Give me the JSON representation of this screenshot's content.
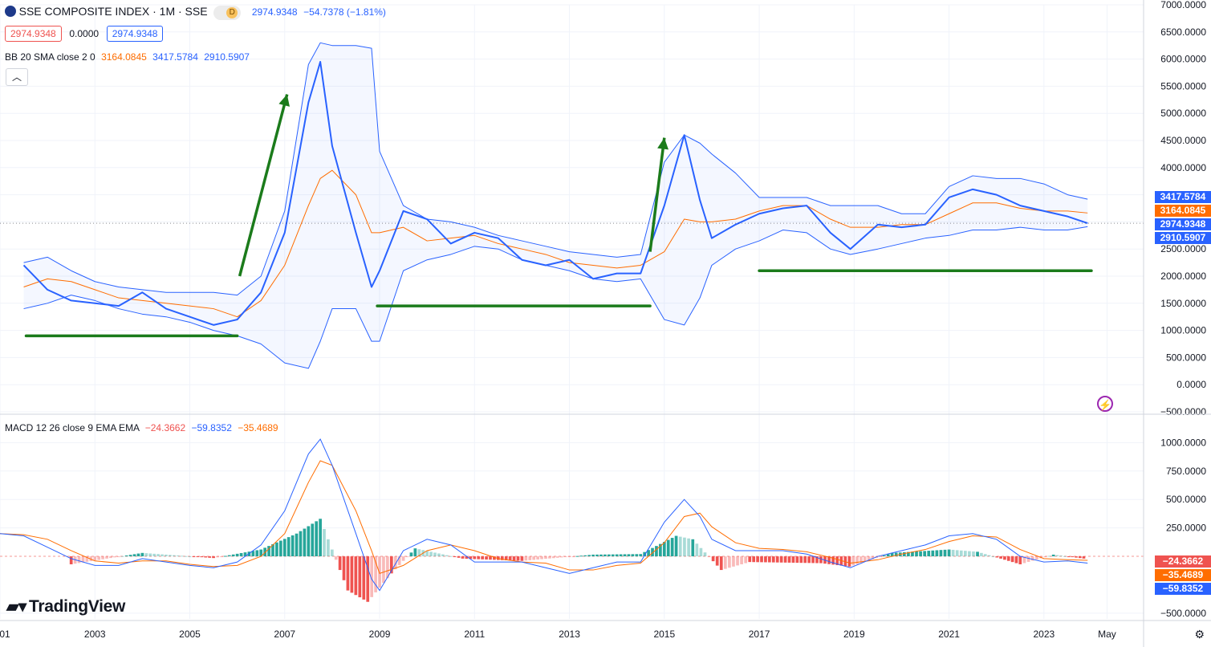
{
  "header": {
    "symbol_title": "SSE COMPOSITE INDEX · 1M · SSE",
    "interval_badge": "D",
    "last_price": "2974.9348",
    "change": "−54.7378 (−1.81%)",
    "bid": "2974.9348",
    "spread": "0.0000",
    "ask": "2974.9348"
  },
  "indicators": {
    "bb": {
      "label": "BB 20 SMA close 2 0",
      "basis": "3164.0845",
      "upper": "3417.5784",
      "lower": "2910.5907"
    },
    "macd": {
      "label": "MACD 12 26 close 9 EMA EMA",
      "hist": "−24.3662",
      "macd": "−59.8352",
      "signal": "−35.4689"
    }
  },
  "price_badges": {
    "upper": "3417.5784",
    "basis": "3164.0845",
    "last": "2974.9348",
    "lower": "2910.5907"
  },
  "macd_badges": {
    "hist": "−24.3662",
    "signal": "−35.4689",
    "macd": "−59.8352"
  },
  "brand": {
    "logo_text": "TradingView"
  },
  "colors": {
    "price": "#2962ff",
    "basis": "#ff6d00",
    "band": "#2962ff",
    "hist_up": "#26a69a",
    "hist_down": "#ef5350",
    "annotation": "#1b7b1b"
  },
  "chart_data": [
    {
      "type": "line",
      "title": "SSE COMPOSITE INDEX",
      "x": [
        2001.5,
        2002,
        2002.5,
        2003,
        2003.5,
        2004,
        2004.5,
        2005,
        2005.5,
        2006,
        2006.5,
        2007,
        2007.5,
        2007.75,
        2008,
        2008.5,
        2008.83,
        2009,
        2009.5,
        2010,
        2010.5,
        2011,
        2011.5,
        2012,
        2012.5,
        2013,
        2013.5,
        2014,
        2014.5,
        2015,
        2015.42,
        2015.75,
        2016,
        2016.5,
        2017,
        2017.5,
        2018,
        2018.5,
        2018.92,
        2019.5,
        2020,
        2020.5,
        2021,
        2021.5,
        2022,
        2022.5,
        2023,
        2023.5,
        2023.92
      ],
      "series": [
        {
          "name": "Price",
          "values": [
            2200,
            1750,
            1550,
            1500,
            1450,
            1700,
            1400,
            1250,
            1100,
            1200,
            1700,
            2800,
            5200,
            5950,
            4400,
            2800,
            1800,
            2100,
            3200,
            3050,
            2600,
            2800,
            2700,
            2300,
            2200,
            2300,
            1950,
            2050,
            2050,
            3300,
            4600,
            3400,
            2700,
            2950,
            3150,
            3250,
            3300,
            2800,
            2500,
            2950,
            2900,
            2950,
            3450,
            3600,
            3500,
            3300,
            3200,
            3100,
            2975
          ]
        },
        {
          "name": "Basis",
          "values": [
            1800,
            1950,
            1900,
            1750,
            1600,
            1550,
            1500,
            1450,
            1400,
            1250,
            1550,
            2200,
            3300,
            3800,
            3950,
            3500,
            2800,
            2800,
            2900,
            2650,
            2700,
            2750,
            2600,
            2500,
            2400,
            2250,
            2200,
            2150,
            2200,
            2450,
            3050,
            3000,
            3000,
            3050,
            3200,
            3300,
            3300,
            3050,
            2900,
            2900,
            2950,
            2950,
            3150,
            3350,
            3350,
            3250,
            3200,
            3200,
            3164
          ]
        },
        {
          "name": "Upper",
          "values": [
            2250,
            2350,
            2100,
            1900,
            1800,
            1750,
            1700,
            1700,
            1700,
            1650,
            2000,
            3200,
            5900,
            6300,
            6250,
            6250,
            6200,
            4300,
            3300,
            3050,
            3000,
            2900,
            2750,
            2650,
            2550,
            2450,
            2400,
            2350,
            2400,
            4100,
            4600,
            4450,
            4250,
            3900,
            3450,
            3450,
            3450,
            3300,
            3300,
            3300,
            3150,
            3150,
            3650,
            3850,
            3800,
            3800,
            3700,
            3500,
            3418
          ]
        },
        {
          "name": "Lower",
          "values": [
            1400,
            1500,
            1650,
            1550,
            1400,
            1300,
            1250,
            1150,
            1000,
            900,
            750,
            400,
            300,
            800,
            1400,
            1400,
            800,
            800,
            2100,
            2300,
            2400,
            2550,
            2500,
            2300,
            2200,
            2100,
            1950,
            1900,
            1950,
            1200,
            1100,
            1600,
            2200,
            2500,
            2650,
            2850,
            2800,
            2500,
            2400,
            2500,
            2600,
            2700,
            2750,
            2850,
            2850,
            2900,
            2850,
            2850,
            2911
          ]
        }
      ],
      "ylim": [
        -500,
        7000
      ],
      "yticks": [
        "7000.0000",
        "6500.0000",
        "6000.0000",
        "5500.0000",
        "5000.0000",
        "4500.0000",
        "4000.0000",
        "3500.0000",
        "3000.0000",
        "2500.0000",
        "2000.0000",
        "1500.0000",
        "1000.0000",
        "500.0000",
        "0.0000",
        "−500.0000"
      ],
      "ytick_values": [
        7000,
        6500,
        6000,
        5500,
        5000,
        4500,
        4000,
        3500,
        3000,
        2500,
        2000,
        1500,
        1000,
        500,
        0,
        -500
      ],
      "xticks": [
        "01",
        "2003",
        "2005",
        "2007",
        "2009",
        "2011",
        "2013",
        "2015",
        "2017",
        "2019",
        "2021",
        "2023",
        "May"
      ],
      "xtick_values": [
        2001,
        2003,
        2005,
        2007,
        2009,
        2011,
        2013,
        2015,
        2017,
        2019,
        2021,
        2023,
        2024.33
      ],
      "xlim": [
        2001,
        2025.1
      ],
      "grid": true
    },
    {
      "type": "line",
      "title": "MACD 12 26 close 9 EMA EMA",
      "x": [
        2001,
        2001.5,
        2002,
        2002.5,
        2003,
        2003.5,
        2004,
        2004.5,
        2005,
        2005.5,
        2006,
        2006.5,
        2007,
        2007.5,
        2007.75,
        2008,
        2008.5,
        2008.83,
        2009,
        2009.5,
        2010,
        2010.5,
        2011,
        2011.5,
        2012,
        2012.5,
        2013,
        2013.5,
        2014,
        2014.5,
        2015,
        2015.42,
        2015.75,
        2016,
        2016.5,
        2017,
        2017.5,
        2018,
        2018.5,
        2018.92,
        2019.5,
        2020,
        2020.5,
        2021,
        2021.5,
        2022,
        2022.5,
        2023,
        2023.5,
        2023.92
      ],
      "series": [
        {
          "name": "MACD",
          "values": [
            200,
            180,
            80,
            -20,
            -80,
            -80,
            -20,
            -50,
            -80,
            -100,
            -50,
            100,
            400,
            900,
            1030,
            800,
            200,
            -200,
            -300,
            50,
            150,
            100,
            -50,
            -50,
            -50,
            -100,
            -150,
            -100,
            -50,
            -50,
            300,
            500,
            350,
            150,
            50,
            50,
            50,
            20,
            -50,
            -100,
            0,
            50,
            100,
            180,
            200,
            150,
            0,
            -50,
            -40,
            -60
          ]
        },
        {
          "name": "Signal",
          "values": [
            200,
            190,
            150,
            50,
            -40,
            -60,
            -40,
            -40,
            -70,
            -90,
            -80,
            0,
            200,
            650,
            840,
            800,
            400,
            50,
            -150,
            -80,
            50,
            100,
            50,
            -20,
            -50,
            -60,
            -120,
            -120,
            -80,
            -60,
            120,
            350,
            380,
            260,
            120,
            70,
            60,
            40,
            -10,
            -60,
            -30,
            20,
            60,
            130,
            180,
            170,
            60,
            -20,
            -30,
            -35
          ]
        }
      ],
      "histogram": [
        {
          "x": 2002.5,
          "value": -70
        },
        {
          "x": 2004,
          "value": 30
        },
        {
          "x": 2005.5,
          "value": -15
        },
        {
          "x": 2006.5,
          "value": 60
        },
        {
          "x": 2007.25,
          "value": 200
        },
        {
          "x": 2007.75,
          "value": 330
        },
        {
          "x": 2008.33,
          "value": -300
        },
        {
          "x": 2008.75,
          "value": -400
        },
        {
          "x": 2009.25,
          "value": -150
        },
        {
          "x": 2009.75,
          "value": 70
        },
        {
          "x": 2010.75,
          "value": -20
        },
        {
          "x": 2012,
          "value": -40
        },
        {
          "x": 2013.5,
          "value": 15
        },
        {
          "x": 2014.5,
          "value": 20
        },
        {
          "x": 2015.25,
          "value": 180
        },
        {
          "x": 2015.6,
          "value": 150
        },
        {
          "x": 2016.2,
          "value": -120
        },
        {
          "x": 2016.8,
          "value": -50
        },
        {
          "x": 2018.3,
          "value": -60
        },
        {
          "x": 2018.9,
          "value": -90
        },
        {
          "x": 2019.8,
          "value": 30
        },
        {
          "x": 2021,
          "value": 60
        },
        {
          "x": 2021.6,
          "value": 40
        },
        {
          "x": 2022.5,
          "value": -70
        },
        {
          "x": 2023.2,
          "value": 15
        },
        {
          "x": 2023.92,
          "value": -24
        }
      ],
      "ylim": [
        -550,
        1080
      ],
      "yticks": [
        "1000.0000",
        "750.0000",
        "500.0000",
        "250.0000",
        "−500.0000"
      ],
      "ytick_values": [
        1000,
        750,
        500,
        250,
        -500
      ]
    }
  ]
}
